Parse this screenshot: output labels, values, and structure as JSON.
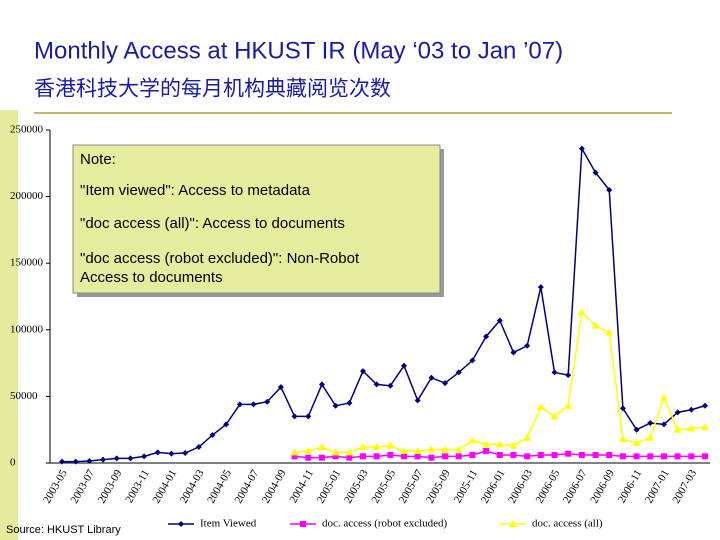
{
  "chart_data": {
    "type": "line",
    "title": "Monthly Access at HKUST IR (May ‘03 to Jan ’07)",
    "subtitle": "香港科技大学的每月机构典藏阅览次数",
    "categories": [
      "2003-05",
      null,
      "2003-07",
      null,
      "2003-09",
      null,
      "2003-11",
      null,
      "2004-01",
      null,
      "2004-03",
      null,
      "2004-05",
      null,
      "2004-07",
      null,
      "2004-09",
      null,
      "2004-11",
      null,
      "2005-01",
      null,
      "2005-03",
      null,
      "2005-05",
      null,
      "2005-07",
      null,
      "2005-09",
      null,
      "2005-11",
      null,
      "2006-01",
      null,
      "2006-03",
      null,
      "2006-05",
      null,
      "2006-07",
      null,
      "2006-09",
      null,
      "2006-11",
      null,
      "2007-01",
      null,
      "2007-03",
      null
    ],
    "series": [
      {
        "name": "Item Viewed",
        "color": "#000080",
        "marker": "diamond",
        "values": [
          1000,
          1000,
          1500,
          2500,
          3500,
          3500,
          5000,
          8000,
          7000,
          7500,
          12000,
          21000,
          29000,
          44000,
          44000,
          46000,
          57000,
          35000,
          35000,
          59000,
          43000,
          45000,
          69000,
          59000,
          58000,
          73000,
          47000,
          64000,
          60000,
          68000,
          77000,
          95000,
          107000,
          83000,
          88000,
          132000,
          68000,
          66000,
          236000,
          218000,
          205000,
          41000,
          25000,
          30000,
          29000,
          38000,
          40000,
          43000
        ]
      },
      {
        "name": "doc. access (robot excluded)",
        "color": "#ff00ff",
        "marker": "square",
        "values": [
          null,
          null,
          null,
          null,
          null,
          null,
          null,
          null,
          null,
          null,
          null,
          null,
          null,
          null,
          null,
          null,
          null,
          5000,
          4000,
          4000,
          5000,
          4000,
          5000,
          5000,
          6000,
          5000,
          5000,
          4000,
          5000,
          5000,
          6000,
          9000,
          6000,
          6000,
          5000,
          6000,
          6000,
          7000,
          6000,
          6000,
          6000,
          5000,
          5000,
          5000,
          5000,
          5000,
          5000,
          5000
        ]
      },
      {
        "name": "doc. access (all)",
        "color": "#ffff00",
        "marker": "triangle",
        "values": [
          null,
          null,
          null,
          null,
          null,
          null,
          null,
          null,
          null,
          null,
          null,
          null,
          null,
          null,
          null,
          null,
          null,
          8000,
          9000,
          12000,
          8000,
          8000,
          12000,
          12000,
          13000,
          9000,
          9000,
          10000,
          10000,
          10000,
          17000,
          14000,
          14000,
          13000,
          19000,
          42000,
          35000,
          43000,
          113000,
          103000,
          98000,
          18000,
          15000,
          19000,
          49000,
          25000,
          26000,
          27000
        ]
      }
    ],
    "ylim": [
      0,
      250000
    ],
    "yticks": [
      0,
      50000,
      100000,
      150000,
      200000,
      250000
    ],
    "legend": "bottom"
  },
  "note": [
    "Note:",
    "\"Item viewed\": Access to metadata",
    "\"doc access (all)\": Access to documents",
    "\"doc access (robot excluded)\": Non-Robot",
    "Access to documents"
  ],
  "source": "Source: HKUST Library"
}
